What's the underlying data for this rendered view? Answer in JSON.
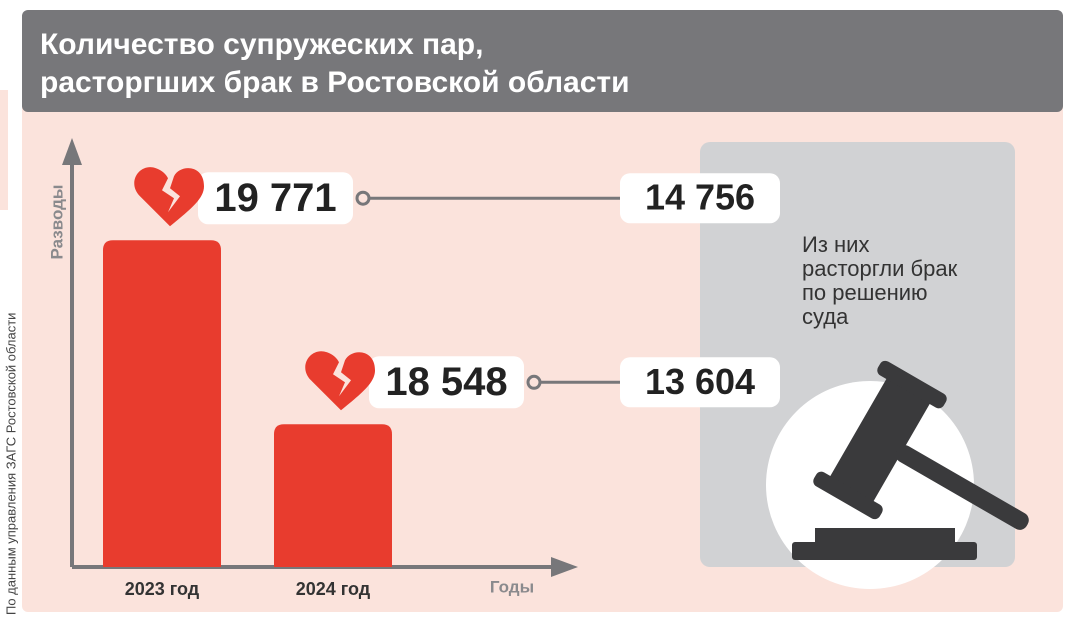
{
  "chart_data": {
    "type": "bar",
    "title": [
      "Количество супружеских пар,",
      "расторгших брак в Ростовской области"
    ],
    "categories": [
      "2023 год",
      "2024 год"
    ],
    "values": [
      19771,
      18548
    ],
    "value_labels": [
      "19 771",
      "18 548"
    ],
    "court_values": [
      14756,
      13604
    ],
    "court_value_labels": [
      "14 756",
      "13 604"
    ],
    "color": "#e83c2e",
    "ylim": [
      17600,
      20450
    ],
    "y_label": "Разводы",
    "x_label": "Годы",
    "note": [
      "Из них",
      "расторгли брак",
      "по решению",
      "суда"
    ],
    "source": "По данным управления ЗАГС Ростовской области"
  }
}
